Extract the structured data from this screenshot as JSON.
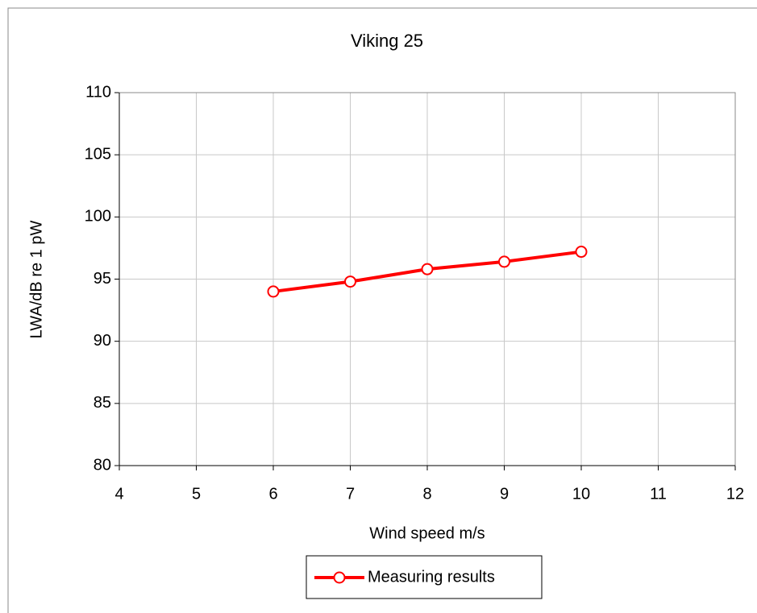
{
  "chart_data": {
    "type": "line",
    "title": "Viking 25",
    "x_label": "Wind speed m/s",
    "y_label": "LWA/dB re 1 pW",
    "x": [
      6,
      7,
      8,
      9,
      10
    ],
    "series": [
      {
        "name": "Measuring results",
        "color": "#ff0000",
        "values": [
          94,
          94.8,
          95.8,
          96.4,
          97.2
        ]
      }
    ],
    "xlim": [
      4,
      12
    ],
    "xticks": [
      4,
      5,
      6,
      7,
      8,
      9,
      10,
      11,
      12
    ],
    "ylim": [
      80,
      110
    ],
    "yticks": [
      80,
      85,
      90,
      95,
      100,
      105,
      110
    ],
    "grid": true,
    "legend": "bottom"
  }
}
